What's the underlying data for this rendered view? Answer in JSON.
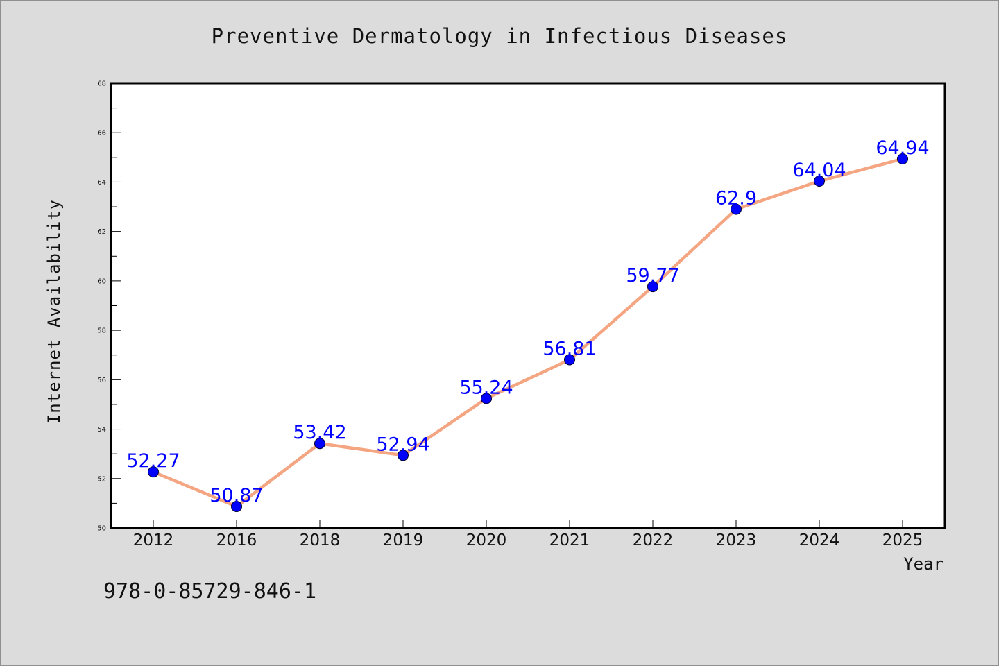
{
  "chart_data": {
    "type": "line",
    "title": "Preventive Dermatology in Infectious Diseases",
    "xlabel": "Year",
    "ylabel": "Internet Availability",
    "categories": [
      "2012",
      "2016",
      "2018",
      "2019",
      "2020",
      "2021",
      "2022",
      "2023",
      "2024",
      "2025"
    ],
    "series": [
      {
        "values": [
          52.27,
          50.87,
          53.42,
          52.94,
          55.24,
          56.81,
          59.77,
          62.9,
          64.04,
          64.94
        ],
        "labels": [
          "52.27",
          "50.87",
          "53.42",
          "52.94",
          "55.24",
          "56.81",
          "59.77",
          "62.9",
          "64.04",
          "64.94"
        ],
        "line_color": "#f4a582",
        "marker_color": "#0000ff"
      }
    ],
    "ylim": [
      50,
      68
    ],
    "yticks": [
      "50",
      "52",
      "54",
      "56",
      "58",
      "60",
      "62",
      "64",
      "66",
      "68"
    ],
    "grid": false,
    "data_label_color": "#0000ff"
  },
  "footer_text": "978-0-85729-846-1",
  "colors": {
    "background": "#dcdcdc",
    "plot_area": "#ffffff",
    "axes": "#000000"
  }
}
